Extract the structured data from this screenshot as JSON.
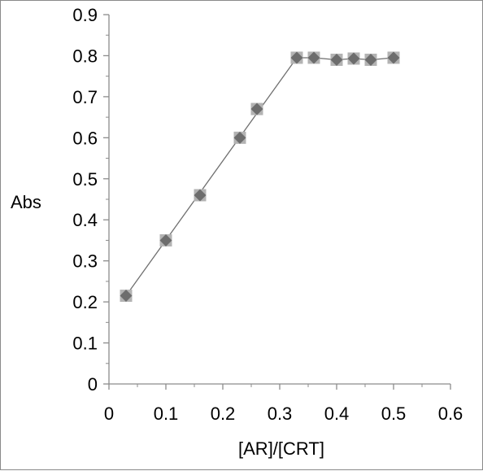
{
  "chart_data": {
    "type": "scatter",
    "title": "",
    "xlabel": "[AR]/[CRT]",
    "ylabel": "Abs",
    "xlim": [
      0,
      0.6
    ],
    "ylim": [
      0,
      0.9
    ],
    "x_ticks": [
      "0",
      "0.1",
      "0.2",
      "0.3",
      "0.4",
      "0.5",
      "0.6"
    ],
    "y_ticks": [
      "0",
      "0.1",
      "0.2",
      "0.3",
      "0.4",
      "0.5",
      "0.6",
      "0.7",
      "0.8",
      "0.9"
    ],
    "grid": false,
    "legend": "none",
    "marker": "diamond",
    "series": [
      {
        "points": [
          {
            "x": 0.03,
            "y": 0.215
          },
          {
            "x": 0.1,
            "y": 0.35
          },
          {
            "x": 0.16,
            "y": 0.46
          },
          {
            "x": 0.23,
            "y": 0.6
          },
          {
            "x": 0.26,
            "y": 0.67
          },
          {
            "x": 0.33,
            "y": 0.795
          },
          {
            "x": 0.36,
            "y": 0.795
          },
          {
            "x": 0.4,
            "y": 0.79
          },
          {
            "x": 0.43,
            "y": 0.793
          },
          {
            "x": 0.46,
            "y": 0.79
          },
          {
            "x": 0.5,
            "y": 0.795
          }
        ],
        "fit_line": [
          {
            "x": 0.03,
            "y": 0.215
          },
          {
            "x": 0.33,
            "y": 0.795
          },
          {
            "x": 0.36,
            "y": 0.795
          },
          {
            "x": 0.4,
            "y": 0.79
          },
          {
            "x": 0.43,
            "y": 0.793
          },
          {
            "x": 0.46,
            "y": 0.79
          },
          {
            "x": 0.5,
            "y": 0.795
          }
        ]
      }
    ]
  },
  "colors": {
    "axis": "#8c8c8c",
    "marker_fill": "#6d6d6d",
    "marker_halo": "#b3b3b3",
    "line": "#6f6f6f",
    "frame": "#8a8a8a"
  }
}
